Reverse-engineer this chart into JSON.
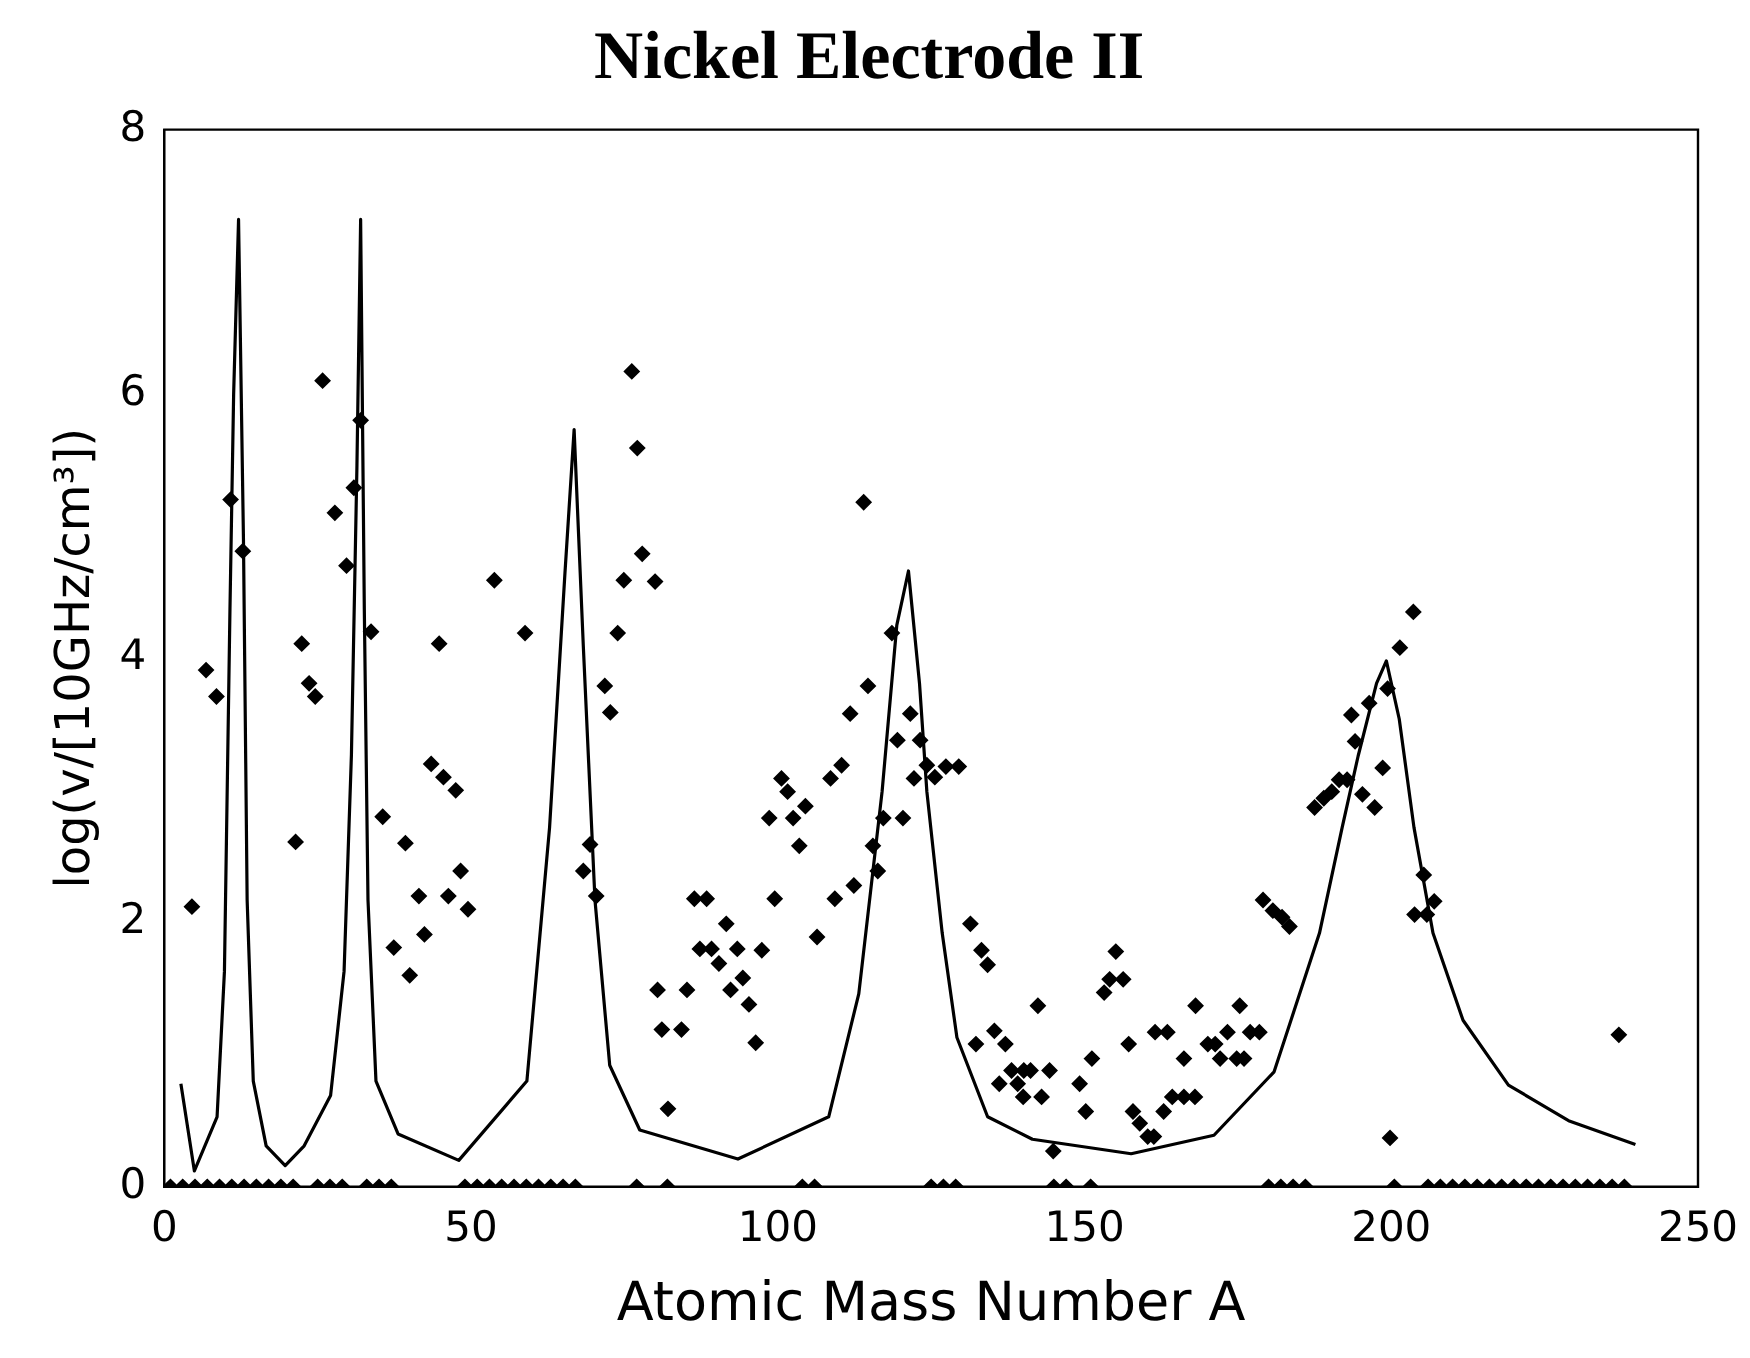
{
  "chart_data": {
    "type": "scatter",
    "title": "Nickel Electrode II",
    "xlabel": "Atomic Mass Number A",
    "ylabel": "log(v/[10GHz/cm³])",
    "xlim": [
      0,
      250
    ],
    "ylim": [
      0,
      8
    ],
    "xticks": [
      0,
      50,
      100,
      150,
      200,
      250
    ],
    "yticks": [
      0,
      2,
      4,
      6,
      8
    ],
    "grid": false,
    "legend": false,
    "marker": "diamond",
    "line_style": "solid",
    "series": [
      {
        "color": "#000000",
        "x": [
          4.5,
          6.8,
          8.5,
          10.8,
          12.8,
          25.8,
          22.4,
          23.6,
          24.6,
          21.4,
          27.8,
          29.7,
          30.9,
          32.0,
          33.7,
          35.6,
          39.3,
          41.5,
          37.4,
          40.0,
          42.4,
          43.5,
          45.5,
          47.5,
          44.8,
          48.3,
          46.3,
          49.5,
          53.8,
          58.8,
          76.2,
          77.1,
          77.9,
          74.9,
          80.0,
          73.9,
          71.8,
          72.7,
          69.4,
          68.3,
          70.4,
          80.4,
          81.1,
          84.3,
          85.2,
          82.1,
          86.4,
          88.4,
          87.3,
          89.2,
          91.6,
          90.4,
          93.4,
          92.3,
          94.3,
          95.3,
          96.4,
          97.4,
          98.6,
          99.5,
          100.6,
          101.6,
          102.5,
          103.5,
          104.5,
          106.4,
          108.6,
          109.3,
          110.4,
          111.8,
          112.4,
          114.0,
          114.7,
          115.5,
          116.3,
          117.2,
          118.6,
          119.5,
          120.4,
          121.6,
          122.2,
          123.2,
          124.3,
          125.6,
          127.4,
          129.5,
          131.4,
          133.2,
          134.2,
          132.3,
          135.3,
          137.1,
          136.1,
          138.1,
          139.1,
          140.1,
          141.2,
          140.0,
          143.0,
          144.3,
          142.4,
          144.9,
          149.2,
          150.2,
          151.2,
          153.2,
          154.1,
          156.3,
          155.1,
          157.2,
          157.9,
          159.0,
          160.3,
          161.3,
          162.9,
          164.3,
          166.2,
          168.0,
          166.2,
          161.5,
          163.5,
          168.1,
          170.1,
          171.3,
          172.1,
          173.3,
          174.8,
          176.0,
          175.3,
          177.0,
          178.5,
          179.1,
          180.7,
          182.2,
          183.4,
          187.5,
          189.0,
          190.3,
          191.5,
          192.8,
          193.5,
          194.1,
          195.3,
          196.4,
          197.3,
          198.6,
          199.4,
          201.4,
          203.6,
          199.8,
          205.3,
          203.8,
          205.8,
          207.0,
          237.1,
          1,
          3,
          5,
          7,
          9,
          11,
          13,
          15,
          17,
          19,
          21,
          25,
          27,
          29,
          33,
          35,
          37,
          49,
          51,
          53,
          55,
          57,
          59,
          61,
          63,
          65,
          67,
          77,
          82,
          104,
          106,
          125,
          127,
          129,
          145,
          147,
          151,
          180,
          182,
          184,
          186,
          200.5,
          206,
          208,
          210,
          212,
          214,
          216,
          218,
          220,
          222,
          224,
          226,
          228,
          230,
          232,
          234,
          236,
          238
        ],
        "values": [
          2.12,
          3.91,
          3.71,
          5.2,
          4.81,
          6.1,
          4.11,
          3.81,
          3.71,
          2.61,
          5.1,
          4.7,
          5.29,
          5.8,
          4.2,
          2.8,
          2.6,
          2.2,
          1.81,
          1.6,
          1.91,
          3.2,
          3.1,
          3.0,
          4.11,
          2.39,
          2.2,
          2.1,
          4.59,
          4.19,
          6.17,
          5.59,
          4.79,
          4.59,
          4.58,
          4.19,
          3.79,
          3.59,
          2.59,
          2.39,
          2.2,
          1.49,
          1.19,
          1.19,
          1.49,
          0.59,
          2.18,
          2.18,
          1.8,
          1.8,
          1.99,
          1.69,
          1.8,
          1.49,
          1.58,
          1.38,
          1.09,
          1.79,
          2.79,
          2.18,
          3.09,
          2.99,
          2.79,
          2.58,
          2.88,
          1.89,
          3.09,
          2.18,
          3.19,
          3.58,
          2.28,
          5.18,
          3.79,
          2.58,
          2.39,
          2.79,
          4.19,
          3.38,
          2.79,
          3.58,
          3.09,
          3.38,
          3.19,
          3.1,
          3.18,
          3.18,
          1.99,
          1.79,
          1.68,
          1.08,
          1.18,
          1.08,
          0.78,
          0.88,
          0.78,
          0.88,
          0.88,
          0.68,
          0.68,
          0.88,
          1.37,
          0.27,
          0.78,
          0.57,
          0.97,
          1.47,
          1.57,
          1.57,
          1.78,
          1.08,
          0.57,
          0.48,
          0.38,
          0.38,
          0.57,
          0.68,
          0.68,
          0.68,
          0.97,
          1.17,
          1.17,
          1.37,
          1.08,
          1.08,
          0.97,
          1.17,
          0.97,
          0.97,
          1.37,
          1.17,
          1.17,
          2.17,
          2.09,
          2.04,
          1.97,
          2.87,
          2.94,
          2.99,
          3.08,
          3.08,
          3.57,
          3.37,
          2.97,
          3.66,
          2.87,
          3.17,
          3.77,
          4.08,
          4.35,
          0.37,
          2.36,
          2.06,
          2.06,
          2.16,
          1.15,
          0,
          0,
          0,
          0,
          0,
          0,
          0,
          0,
          0,
          0,
          0,
          0,
          0,
          0,
          0,
          0,
          0,
          0,
          0,
          0,
          0,
          0,
          0,
          0,
          0,
          0,
          0,
          0,
          0,
          0,
          0,
          0,
          0,
          0,
          0,
          0,
          0,
          0,
          0,
          0,
          0,
          0,
          0,
          0,
          0,
          0,
          0,
          0,
          0,
          0,
          0,
          0,
          0,
          0,
          0,
          0,
          0,
          0,
          0
        ]
      },
      {
        "type": "line",
        "marker": "none",
        "color": "#000000",
        "x": [
          2.7,
          4.9,
          8.6,
          9.8,
          10.7,
          11.3,
          12.1,
          12.9,
          13.5,
          14.5,
          16.6,
          19.7,
          22.8,
          27.1,
          29.3,
          30.5,
          31.4,
          32.0,
          32.6,
          33.2,
          34.5,
          38.1,
          48,
          59.1,
          62.8,
          65.3,
          66.8,
          68.3,
          70.2,
          72.6,
          77.5,
          93.5,
          108.3,
          113.2,
          117.0,
          119.4,
          121.3,
          123.1,
          124.3,
          126.8,
          129.2,
          134.2,
          141.5,
          157.6,
          171.1,
          180.9,
          188.3,
          192.0,
          194.6,
          197.6,
          199.2,
          201.3,
          203.7,
          206.8,
          211.7,
          219.1,
          228.9,
          239.8
        ],
        "values": [
          0.78,
          0.12,
          0.53,
          1.63,
          4.37,
          6.0,
          7.32,
          4.9,
          2.17,
          0.8,
          0.31,
          0.16,
          0.31,
          0.69,
          1.63,
          3.27,
          5.46,
          7.32,
          4.37,
          2.17,
          0.8,
          0.4,
          0.2,
          0.8,
          2.72,
          4.64,
          5.73,
          4.09,
          2.17,
          0.92,
          0.43,
          0.21,
          0.53,
          1.46,
          2.99,
          4.25,
          4.66,
          3.81,
          2.99,
          1.92,
          1.13,
          0.53,
          0.36,
          0.25,
          0.39,
          0.87,
          1.92,
          2.72,
          3.26,
          3.81,
          3.98,
          3.54,
          2.72,
          1.92,
          1.26,
          0.77,
          0.5,
          0.32
        ]
      }
    ]
  }
}
